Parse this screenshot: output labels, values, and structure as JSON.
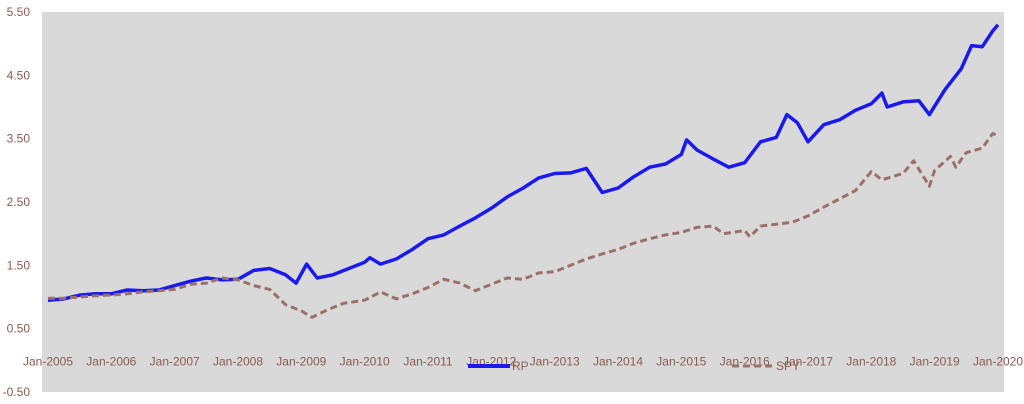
{
  "chart_data": {
    "type": "line",
    "title": "",
    "xlabel": "",
    "ylabel": "",
    "ylim": [
      -0.5,
      5.5
    ],
    "xlim": [
      "2005-01",
      "2020-01"
    ],
    "yticks": [
      "5.50",
      "4.50",
      "3.50",
      "2.50",
      "1.50",
      "0.50",
      "-0.50"
    ],
    "ytick_values": [
      5.5,
      4.5,
      3.5,
      2.5,
      1.5,
      0.5,
      -0.5
    ],
    "xticks": [
      "Jan-2005",
      "Jan-2006",
      "Jan-2007",
      "Jan-2008",
      "Jan-2009",
      "Jan-2010",
      "Jan-2011",
      "Jan-2012",
      "Jan-2013",
      "Jan-2014",
      "Jan-2015",
      "Jan-2016",
      "Jan-2017",
      "Jan-2018",
      "Jan-2019",
      "Jan-2020"
    ],
    "grid": false,
    "legend": "bottom",
    "plot_bg": "#d9d9d9",
    "series": [
      {
        "name": "RP",
        "color": "#1a1aee",
        "style": "solid",
        "points": [
          [
            "2005-01",
            0.95
          ],
          [
            "2005-04",
            0.97
          ],
          [
            "2005-07",
            1.03
          ],
          [
            "2005-10",
            1.05
          ],
          [
            "2006-01",
            1.05
          ],
          [
            "2006-04",
            1.11
          ],
          [
            "2006-07",
            1.1
          ],
          [
            "2006-10",
            1.11
          ],
          [
            "2007-01",
            1.18
          ],
          [
            "2007-04",
            1.25
          ],
          [
            "2007-07",
            1.3
          ],
          [
            "2007-10",
            1.27
          ],
          [
            "2008-01",
            1.28
          ],
          [
            "2008-04",
            1.42
          ],
          [
            "2008-07",
            1.45
          ],
          [
            "2008-10",
            1.35
          ],
          [
            "2008-12",
            1.22
          ],
          [
            "2009-02",
            1.52
          ],
          [
            "2009-04",
            1.3
          ],
          [
            "2009-07",
            1.35
          ],
          [
            "2009-10",
            1.45
          ],
          [
            "2010-01",
            1.55
          ],
          [
            "2010-02",
            1.62
          ],
          [
            "2010-04",
            1.52
          ],
          [
            "2010-07",
            1.6
          ],
          [
            "2010-10",
            1.75
          ],
          [
            "2011-01",
            1.92
          ],
          [
            "2011-04",
            1.98
          ],
          [
            "2011-07",
            2.12
          ],
          [
            "2011-10",
            2.25
          ],
          [
            "2012-01",
            2.4
          ],
          [
            "2012-04",
            2.58
          ],
          [
            "2012-07",
            2.72
          ],
          [
            "2012-10",
            2.88
          ],
          [
            "2013-01",
            2.95
          ],
          [
            "2013-04",
            2.96
          ],
          [
            "2013-07",
            3.03
          ],
          [
            "2013-10",
            2.65
          ],
          [
            "2014-01",
            2.72
          ],
          [
            "2014-04",
            2.9
          ],
          [
            "2014-07",
            3.05
          ],
          [
            "2014-10",
            3.1
          ],
          [
            "2015-01",
            3.25
          ],
          [
            "2015-02",
            3.48
          ],
          [
            "2015-04",
            3.32
          ],
          [
            "2015-07",
            3.18
          ],
          [
            "2015-10",
            3.05
          ],
          [
            "2016-01",
            3.12
          ],
          [
            "2016-04",
            3.45
          ],
          [
            "2016-07",
            3.52
          ],
          [
            "2016-09",
            3.88
          ],
          [
            "2016-11",
            3.75
          ],
          [
            "2017-01",
            3.45
          ],
          [
            "2017-04",
            3.72
          ],
          [
            "2017-07",
            3.8
          ],
          [
            "2017-10",
            3.95
          ],
          [
            "2018-01",
            4.05
          ],
          [
            "2018-03",
            4.22
          ],
          [
            "2018-04",
            4.0
          ],
          [
            "2018-07",
            4.08
          ],
          [
            "2018-10",
            4.1
          ],
          [
            "2018-12",
            3.88
          ],
          [
            "2019-03",
            4.28
          ],
          [
            "2019-06",
            4.6
          ],
          [
            "2019-08",
            4.97
          ],
          [
            "2019-10",
            4.95
          ],
          [
            "2019-12",
            5.2
          ],
          [
            "2020-01",
            5.3
          ]
        ]
      },
      {
        "name": "SPY",
        "color": "#9c7068",
        "style": "dashed",
        "points": [
          [
            "2005-01",
            0.98
          ],
          [
            "2005-04",
            0.98
          ],
          [
            "2005-07",
            1.0
          ],
          [
            "2005-10",
            1.02
          ],
          [
            "2006-01",
            1.03
          ],
          [
            "2006-04",
            1.05
          ],
          [
            "2006-07",
            1.08
          ],
          [
            "2006-10",
            1.1
          ],
          [
            "2007-01",
            1.12
          ],
          [
            "2007-04",
            1.2
          ],
          [
            "2007-07",
            1.22
          ],
          [
            "2007-10",
            1.3
          ],
          [
            "2008-01",
            1.27
          ],
          [
            "2008-04",
            1.18
          ],
          [
            "2008-07",
            1.12
          ],
          [
            "2008-10",
            0.88
          ],
          [
            "2009-01",
            0.78
          ],
          [
            "2009-03",
            0.68
          ],
          [
            "2009-06",
            0.8
          ],
          [
            "2009-09",
            0.9
          ],
          [
            "2010-01",
            0.95
          ],
          [
            "2010-04",
            1.08
          ],
          [
            "2010-07",
            0.97
          ],
          [
            "2010-10",
            1.05
          ],
          [
            "2011-01",
            1.15
          ],
          [
            "2011-04",
            1.28
          ],
          [
            "2011-07",
            1.22
          ],
          [
            "2011-10",
            1.1
          ],
          [
            "2012-01",
            1.2
          ],
          [
            "2012-04",
            1.3
          ],
          [
            "2012-07",
            1.28
          ],
          [
            "2012-10",
            1.38
          ],
          [
            "2013-01",
            1.4
          ],
          [
            "2013-04",
            1.5
          ],
          [
            "2013-07",
            1.6
          ],
          [
            "2013-10",
            1.68
          ],
          [
            "2014-01",
            1.75
          ],
          [
            "2014-04",
            1.85
          ],
          [
            "2014-07",
            1.92
          ],
          [
            "2014-10",
            1.98
          ],
          [
            "2015-01",
            2.02
          ],
          [
            "2015-04",
            2.1
          ],
          [
            "2015-07",
            2.12
          ],
          [
            "2015-09",
            2.0
          ],
          [
            "2016-01",
            2.05
          ],
          [
            "2016-02",
            1.95
          ],
          [
            "2016-04",
            2.12
          ],
          [
            "2016-07",
            2.15
          ],
          [
            "2016-10",
            2.18
          ],
          [
            "2017-01",
            2.28
          ],
          [
            "2017-04",
            2.42
          ],
          [
            "2017-07",
            2.55
          ],
          [
            "2017-10",
            2.68
          ],
          [
            "2018-01",
            2.98
          ],
          [
            "2018-03",
            2.85
          ],
          [
            "2018-07",
            2.95
          ],
          [
            "2018-09",
            3.15
          ],
          [
            "2018-12",
            2.75
          ],
          [
            "2019-01",
            3.0
          ],
          [
            "2019-04",
            3.22
          ],
          [
            "2019-05",
            3.05
          ],
          [
            "2019-07",
            3.28
          ],
          [
            "2019-10",
            3.35
          ],
          [
            "2019-12",
            3.58
          ],
          [
            "2020-01",
            3.55
          ]
        ]
      }
    ]
  }
}
